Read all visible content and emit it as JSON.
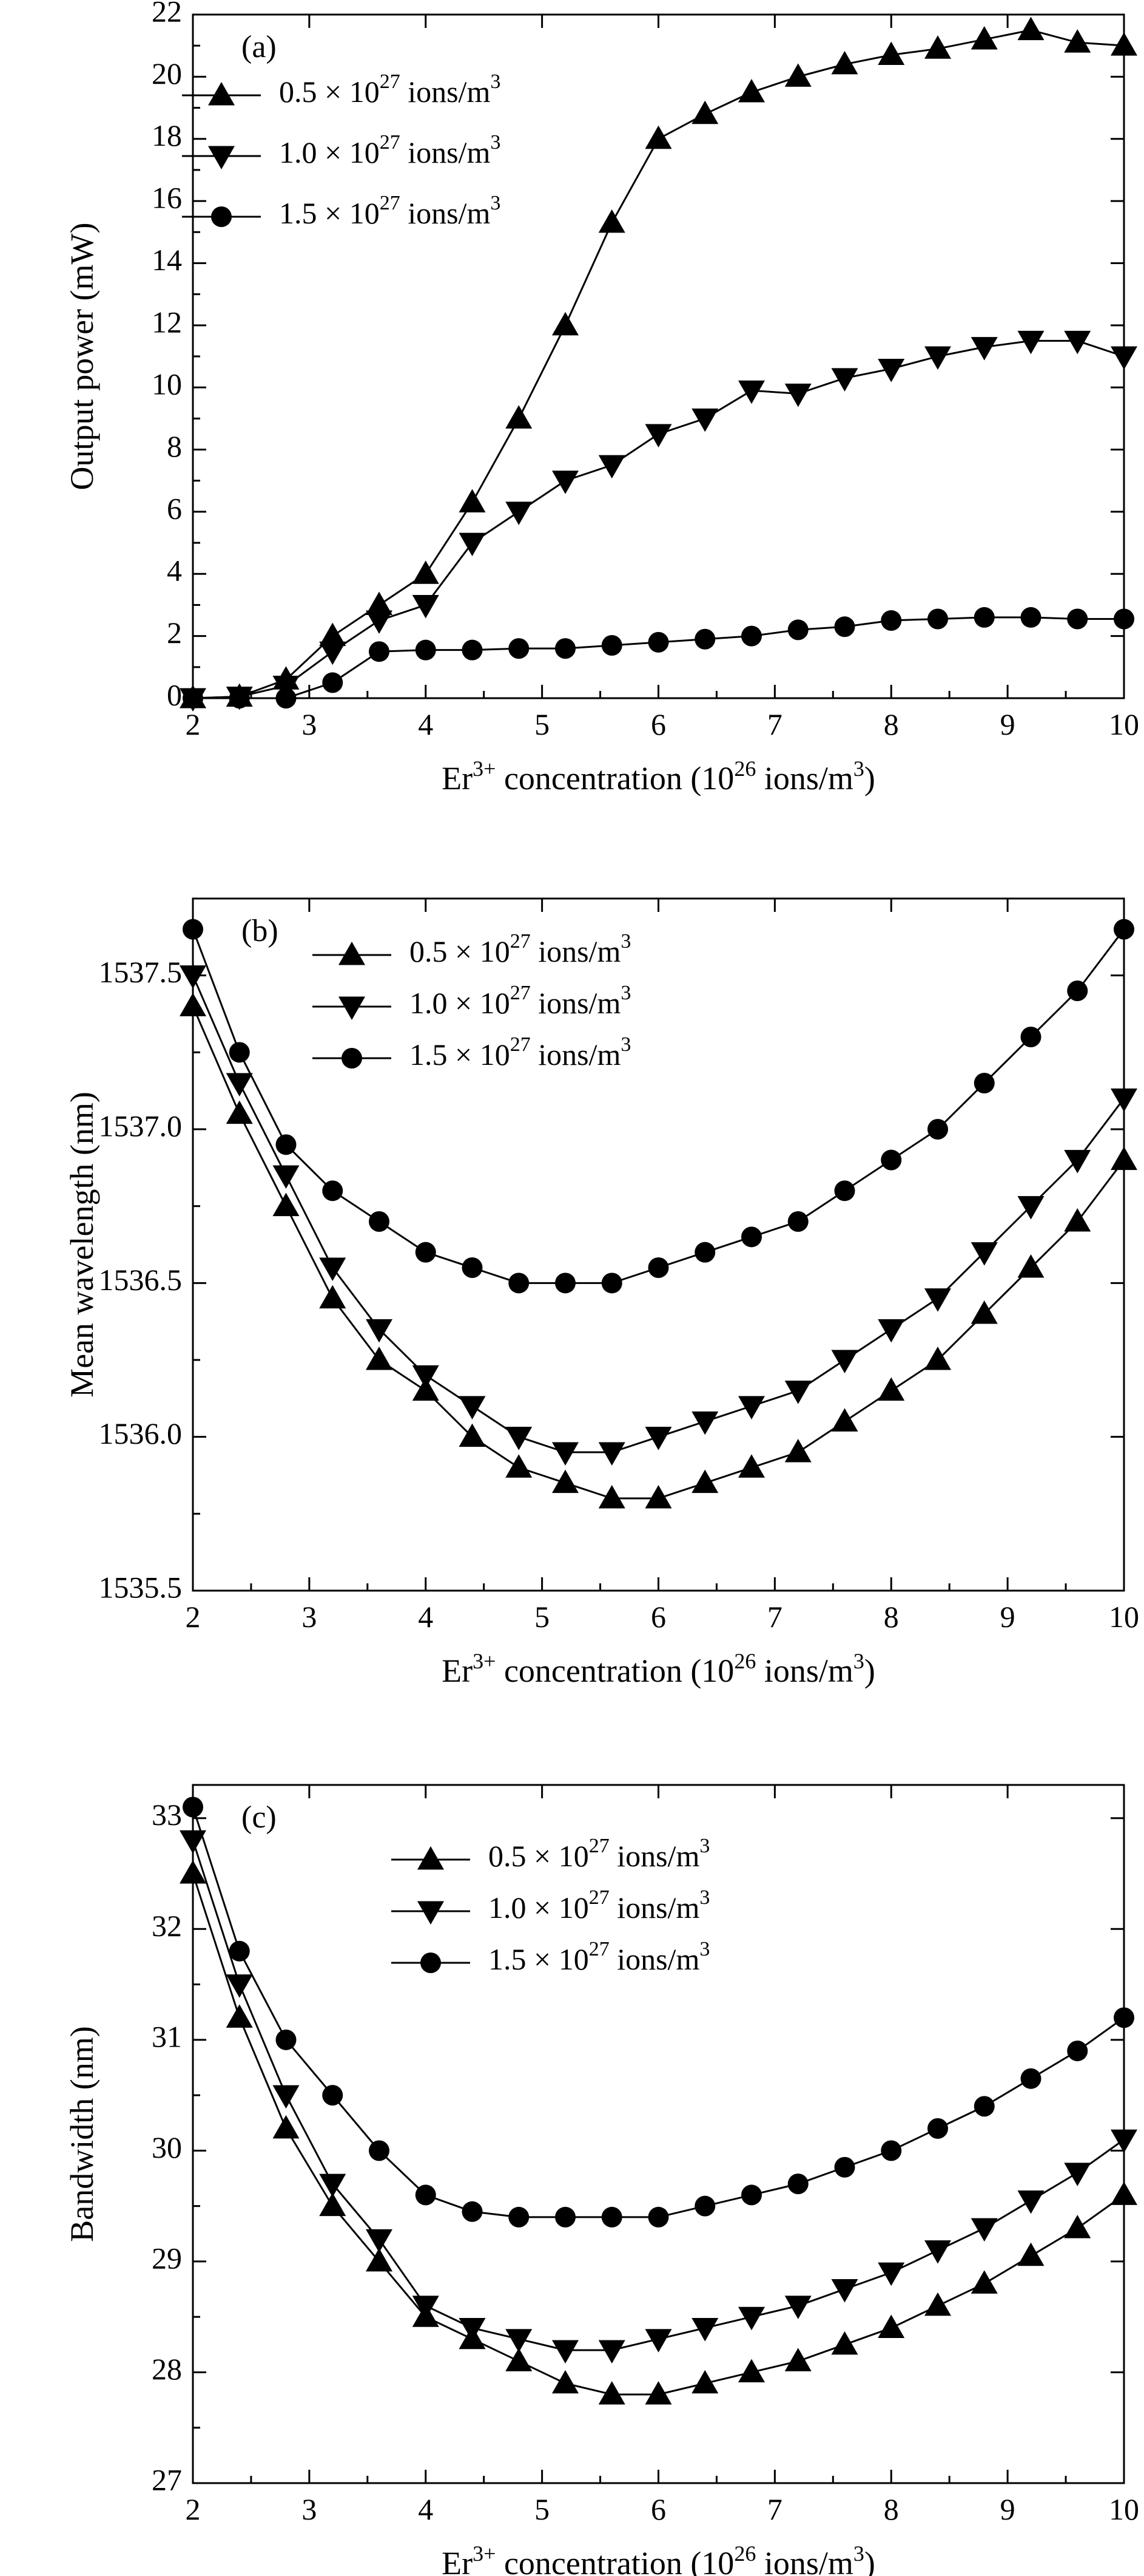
{
  "chart_data": [
    {
      "type": "line",
      "panel_label": "(a)",
      "xlabel": {
        "base": "Er",
        "sup": "3+",
        "mid": " concentration (10",
        "sup2": "26",
        "mid2": " ions/m",
        "sup3": "3",
        "end": ")"
      },
      "ylabel": "Output power (mW)",
      "xlim": [
        2,
        10
      ],
      "ylim": [
        0,
        22
      ],
      "xticks": [
        2,
        3,
        4,
        5,
        6,
        7,
        8,
        9,
        10
      ],
      "yticks": [
        0,
        2,
        4,
        6,
        8,
        10,
        12,
        14,
        16,
        18,
        20,
        22
      ],
      "grid": false,
      "legend_position": "top-left",
      "x": [
        2.0,
        2.4,
        2.8,
        3.2,
        3.6,
        4.0,
        4.4,
        4.8,
        5.2,
        5.6,
        6.0,
        6.4,
        6.8,
        7.2,
        7.6,
        8.0,
        8.4,
        8.8,
        9.2,
        9.6,
        10.0
      ],
      "series": [
        {
          "name": "0.5 × 10^27 ions/m^3",
          "marker": "triangle-up",
          "values": [
            0.0,
            0.05,
            0.6,
            2.0,
            3.0,
            4.0,
            6.3,
            9.0,
            12.0,
            15.3,
            18.0,
            18.8,
            19.5,
            20.0,
            20.4,
            20.7,
            20.9,
            21.2,
            21.5,
            21.1,
            21.0
          ]
        },
        {
          "name": "1.0 × 10^27 ions/m^3",
          "marker": "triangle-down",
          "values": [
            0.0,
            0.05,
            0.4,
            1.5,
            2.5,
            3.0,
            5.0,
            6.0,
            7.0,
            7.5,
            8.5,
            9.0,
            9.9,
            9.8,
            10.3,
            10.6,
            11.0,
            11.3,
            11.5,
            11.5,
            11.0
          ]
        },
        {
          "name": "1.5 × 10^27 ions/m^3",
          "marker": "circle",
          "values": [
            0.0,
            0.0,
            0.0,
            0.5,
            1.5,
            1.55,
            1.55,
            1.6,
            1.6,
            1.7,
            1.8,
            1.9,
            2.0,
            2.2,
            2.3,
            2.5,
            2.55,
            2.6,
            2.6,
            2.55,
            2.55
          ]
        }
      ]
    },
    {
      "type": "line",
      "panel_label": "(b)",
      "xlabel": {
        "base": "Er",
        "sup": "3+",
        "mid": " concentration (10",
        "sup2": "26",
        "mid2": " ions/m",
        "sup3": "3",
        "end": ")"
      },
      "ylabel": "Mean wavelength (nm)",
      "xlim": [
        2,
        10
      ],
      "ylim": [
        1535.5,
        1537.75
      ],
      "xticks": [
        2,
        3,
        4,
        5,
        6,
        7,
        8,
        9,
        10
      ],
      "yticks": [
        1535.5,
        1536.0,
        1536.5,
        1537.0,
        1537.5
      ],
      "grid": false,
      "legend_position": "top-center",
      "x": [
        2.0,
        2.4,
        2.8,
        3.2,
        3.6,
        4.0,
        4.4,
        4.8,
        5.2,
        5.6,
        6.0,
        6.4,
        6.8,
        7.2,
        7.6,
        8.0,
        8.4,
        8.8,
        9.2,
        9.6,
        10.0
      ],
      "series": [
        {
          "name": "0.5 × 10^27 ions/m^3",
          "marker": "triangle-up",
          "values": [
            1537.4,
            1537.05,
            1536.75,
            1536.45,
            1536.25,
            1536.15,
            1536.0,
            1535.9,
            1535.85,
            1535.8,
            1535.8,
            1535.85,
            1535.9,
            1535.95,
            1536.05,
            1536.15,
            1536.25,
            1536.4,
            1536.55,
            1536.7,
            1536.9
          ]
        },
        {
          "name": "1.0 × 10^27 ions/m^3",
          "marker": "triangle-down",
          "values": [
            1537.5,
            1537.15,
            1536.85,
            1536.55,
            1536.35,
            1536.2,
            1536.1,
            1536.0,
            1535.95,
            1535.95,
            1536.0,
            1536.05,
            1536.1,
            1536.15,
            1536.25,
            1536.35,
            1536.45,
            1536.6,
            1536.75,
            1536.9,
            1537.1
          ]
        },
        {
          "name": "1.5 × 10^27 ions/m^3",
          "marker": "circle",
          "values": [
            1537.65,
            1537.25,
            1536.95,
            1536.8,
            1536.7,
            1536.6,
            1536.55,
            1536.5,
            1536.5,
            1536.5,
            1536.55,
            1536.6,
            1536.65,
            1536.7,
            1536.8,
            1536.9,
            1537.0,
            1537.15,
            1537.3,
            1537.45,
            1537.65
          ]
        }
      ]
    },
    {
      "type": "line",
      "panel_label": "(c)",
      "xlabel": {
        "base": "Er",
        "sup": "3+",
        "mid": " concentration (10",
        "sup2": "26",
        "mid2": " ions/m",
        "sup3": "3",
        "end": ")"
      },
      "ylabel": "Bandwidth (nm)",
      "xlim": [
        2,
        10
      ],
      "ylim": [
        27,
        33.3
      ],
      "xticks": [
        2,
        3,
        4,
        5,
        6,
        7,
        8,
        9,
        10
      ],
      "yticks": [
        27,
        28,
        29,
        30,
        31,
        32,
        33
      ],
      "grid": false,
      "legend_position": "top-center",
      "x": [
        2.0,
        2.4,
        2.8,
        3.2,
        3.6,
        4.0,
        4.4,
        4.8,
        5.2,
        5.6,
        6.0,
        6.4,
        6.8,
        7.2,
        7.6,
        8.0,
        8.4,
        8.8,
        9.2,
        9.6,
        10.0
      ],
      "series": [
        {
          "name": "0.5 × 10^27 ions/m^3",
          "marker": "triangle-up",
          "values": [
            32.5,
            31.2,
            30.2,
            29.5,
            29.0,
            28.5,
            28.3,
            28.1,
            27.9,
            27.8,
            27.8,
            27.9,
            28.0,
            28.1,
            28.25,
            28.4,
            28.6,
            28.8,
            29.05,
            29.3,
            29.6
          ]
        },
        {
          "name": "1.0 × 10^27 ions/m^3",
          "marker": "triangle-down",
          "values": [
            32.8,
            31.5,
            30.5,
            29.7,
            29.2,
            28.6,
            28.4,
            28.3,
            28.2,
            28.2,
            28.3,
            28.4,
            28.5,
            28.6,
            28.75,
            28.9,
            29.1,
            29.3,
            29.55,
            29.8,
            30.1
          ]
        },
        {
          "name": "1.5 × 10^27 ions/m^3",
          "marker": "circle",
          "values": [
            33.1,
            31.8,
            31.0,
            30.5,
            30.0,
            29.6,
            29.45,
            29.4,
            29.4,
            29.4,
            29.4,
            29.5,
            29.6,
            29.7,
            29.85,
            30.0,
            30.2,
            30.4,
            30.65,
            30.9,
            31.2
          ]
        }
      ]
    }
  ]
}
